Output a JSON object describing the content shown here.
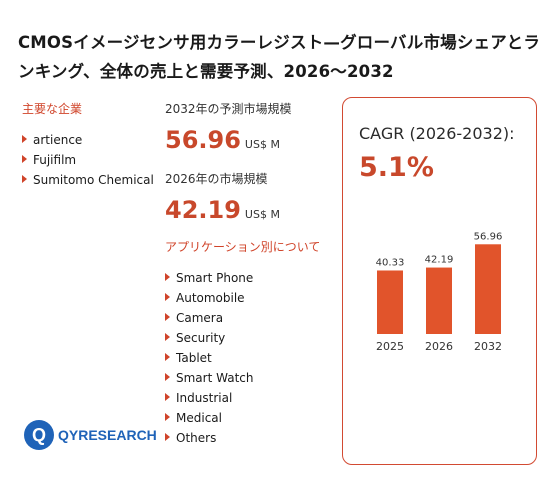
{
  "title": "CMOSイメージセンサ用カラーレジスト—グローバル市場シェアとランキング、全体の売上と需要予測、2026〜2032",
  "companies_label": "主要な企業",
  "companies": [
    "artience",
    "Fujifilm",
    "Sumitomo Chemical"
  ],
  "metric_2032": {
    "label": "2032年の予測市場規模",
    "value": "56.96",
    "unit": "US$ M"
  },
  "metric_2026": {
    "label": "2026年の市場規模",
    "value": "42.19",
    "unit": "US$ M"
  },
  "applications_label": "アプリケーション別について",
  "applications": [
    "Smart Phone",
    "Automobile",
    "Camera",
    "Security",
    "Tablet",
    "Smart Watch",
    "Industrial",
    "Medical",
    "Others"
  ],
  "cagr": {
    "label": "CAGR (2026-2032):",
    "value": "5.1%"
  },
  "logo": {
    "text": "QYRESEARCH",
    "mark": "Q"
  },
  "colors": {
    "accent": "#c8482b",
    "bar": "#e1542b",
    "logo": "#1f63b8"
  },
  "chart_data": {
    "type": "bar",
    "categories": [
      "2025",
      "2026",
      "2032"
    ],
    "values": [
      40.33,
      42.19,
      56.96
    ],
    "title": "",
    "xlabel": "",
    "ylabel": "",
    "ylim": [
      0,
      60
    ],
    "grid": false,
    "data_labels": true
  }
}
